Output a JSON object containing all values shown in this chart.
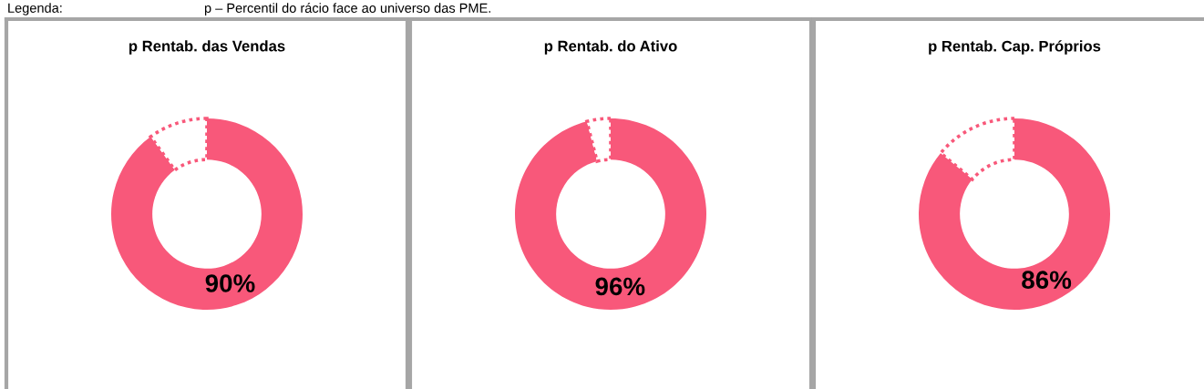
{
  "chart_data": [
    {
      "type": "donut",
      "title": "p Rentab. das Vendas",
      "categories": [
        null,
        null
      ],
      "values": [
        90,
        10
      ],
      "colors": [
        "#f8587a",
        "#ffffff"
      ],
      "value_labels": [
        "90%",
        null
      ],
      "line_style": "dotted",
      "annotations": [
        "Legenda:",
        "p – Percentil do rácio face ao universo das PME."
      ]
    },
    {
      "type": "donut",
      "title": "p Rentab. do Ativo",
      "categories": [
        null,
        null
      ],
      "values": [
        96,
        4
      ],
      "colors": [
        "#f8587a",
        "#ffffff"
      ],
      "value_labels": [
        "96%",
        null
      ],
      "line_style": "dotted"
    },
    {
      "type": "donut",
      "title": "p Rentab. Cap. Próprios",
      "categories": [
        null,
        null
      ],
      "values": [
        86,
        14
      ],
      "colors": [
        "#f8587a",
        "#ffffff"
      ],
      "value_labels": [
        "86%",
        null
      ],
      "line_style": "dotted"
    }
  ]
}
